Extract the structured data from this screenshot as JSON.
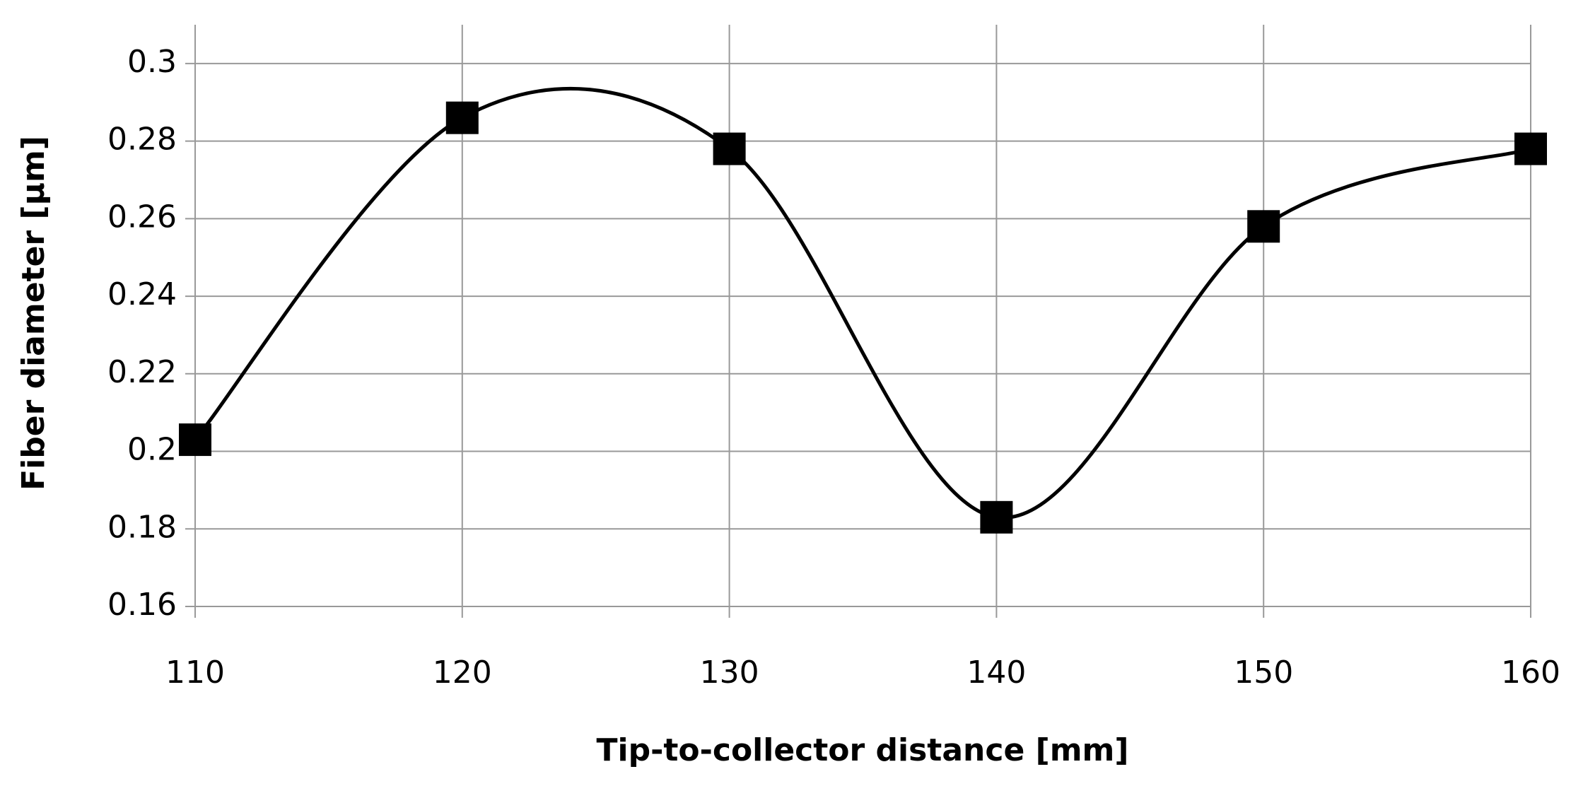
{
  "chart_data": {
    "type": "line",
    "x_label": "Tip-to-collector distance [mm]",
    "y_label": "Fiber diameter [µm]",
    "x": [
      110,
      120,
      130,
      140,
      150,
      160
    ],
    "series": [
      {
        "color": "#000000",
        "values": [
          0.203,
          0.286,
          0.278,
          0.183,
          0.258,
          0.278
        ]
      }
    ],
    "smooth": true,
    "marker": "square",
    "xlim": [
      110,
      160
    ],
    "xticks": [
      110,
      120,
      130,
      140,
      150,
      160
    ],
    "ylim": [
      0.16,
      0.31
    ],
    "yticks": [
      0.16,
      0.18,
      0.2,
      0.22,
      0.24,
      0.26,
      0.28,
      0.3
    ],
    "grid": true
  }
}
